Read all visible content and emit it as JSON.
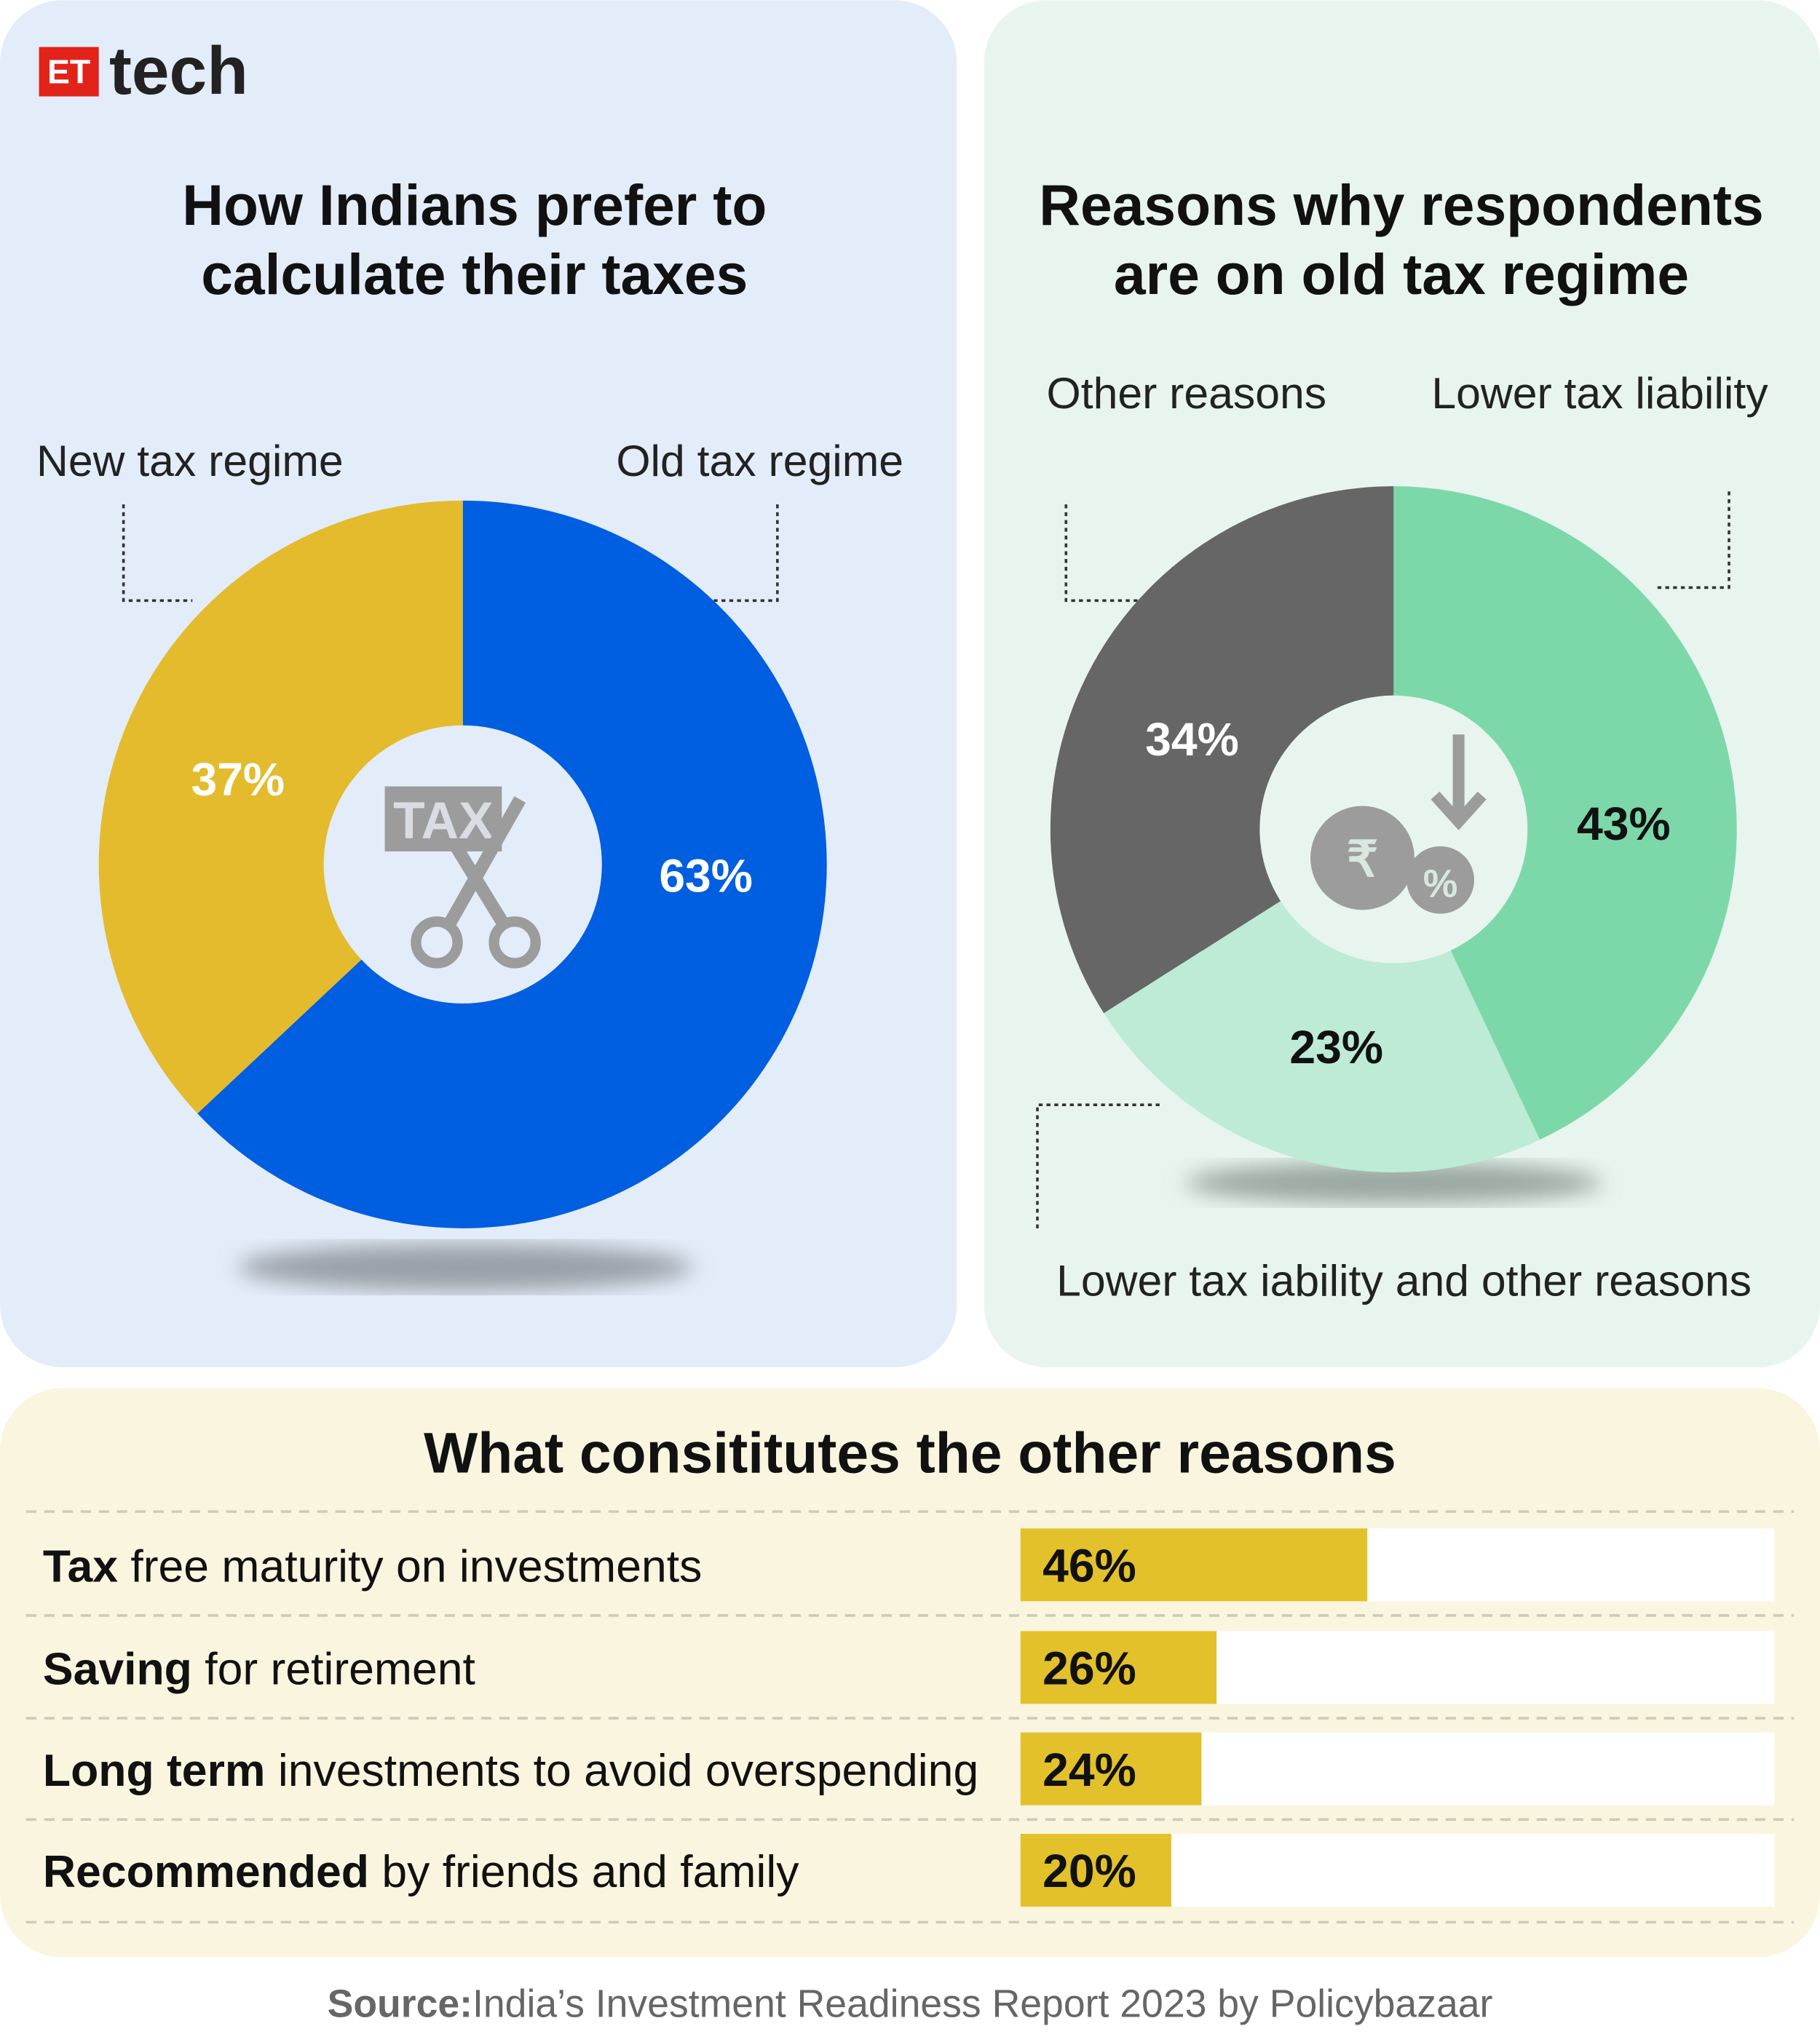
{
  "logo": {
    "badge": "ET",
    "text": "tech"
  },
  "chart_data": [
    {
      "type": "pie",
      "title": [
        "How Indians prefer to",
        "calculate their taxes"
      ],
      "categories": [
        "Old tax regime",
        "New tax regime"
      ],
      "values": [
        63,
        37
      ],
      "value_labels": [
        "63%",
        "37%"
      ],
      "colors": [
        "#005ee0",
        "#e3bb2c"
      ]
    },
    {
      "type": "pie",
      "title": [
        "Reasons why respondents",
        "are on old tax regime"
      ],
      "categories": [
        "Lower tax liability",
        "Lower tax iability and other reasons",
        "Other reasons"
      ],
      "values": [
        43,
        23,
        34
      ],
      "value_labels": [
        "43%",
        "23%",
        "34%"
      ],
      "colors": [
        "#7dd8a9",
        "#bdebd5",
        "#666666"
      ]
    },
    {
      "type": "bar",
      "orientation": "horizontal",
      "title": "What consititutes the other reasons",
      "categories": [
        [
          "Tax",
          " free maturity on investments"
        ],
        [
          "Saving",
          " for retirement"
        ],
        [
          "Long term",
          " investments to avoid overspending"
        ],
        [
          "Recommended",
          " by friends and family"
        ]
      ],
      "values": [
        46,
        26,
        24,
        20
      ],
      "value_labels": [
        "46%",
        "26%",
        "24%",
        "20%"
      ],
      "color": "#e3c12b",
      "xlim": [
        0,
        100
      ]
    }
  ],
  "source": {
    "label": "Source:",
    "text": "India’s Investment Readiness Report 2023 by Policybazaar"
  }
}
